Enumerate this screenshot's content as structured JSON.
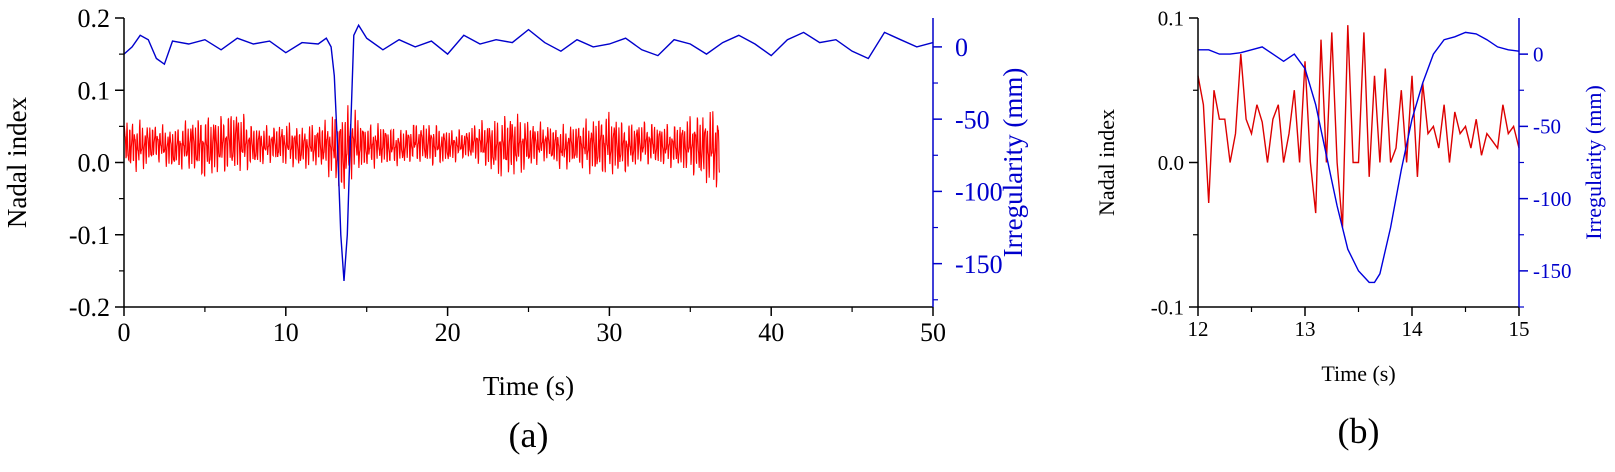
{
  "chart_data": [
    {
      "type": "line",
      "caption": "(a)",
      "xlabel": "Time (s)",
      "ylabel_left": "Nadal index",
      "ylabel_right": "Irregularity (mm)",
      "xlim": [
        0,
        50
      ],
      "ylim_left": [
        -0.2,
        0.2
      ],
      "ylim_right": [
        -180,
        20
      ],
      "x_ticks": [
        0,
        10,
        20,
        30,
        40,
        50
      ],
      "x_tick_labels": [
        "0",
        "10",
        "20",
        "30",
        "40",
        "50"
      ],
      "y_left_ticks": [
        -0.2,
        -0.1,
        0.0,
        0.1,
        0.2
      ],
      "y_left_tick_labels": [
        "-0.2",
        "-0.1",
        "0.0",
        "0.1",
        "0.2"
      ],
      "y_right_ticks": [
        0,
        -50,
        -100,
        -150
      ],
      "y_right_tick_labels": [
        "0",
        "-50",
        "-100",
        "-150"
      ],
      "grid": false,
      "legend": "none",
      "series": [
        {
          "axis": "left",
          "color": "#ff0000",
          "x": [
            0,
            1,
            2,
            3,
            4,
            5,
            6,
            7,
            8,
            9,
            10,
            11,
            12,
            13,
            13.5,
            14,
            15,
            16,
            17,
            18,
            19,
            20,
            21,
            22,
            23,
            24,
            25,
            26,
            27,
            28,
            29,
            30,
            31,
            32,
            33,
            34,
            35,
            36,
            36.8
          ],
          "y_mean": [
            0.025,
            0.022,
            0.028,
            0.018,
            0.025,
            0.02,
            0.025,
            0.03,
            0.022,
            0.025,
            0.026,
            0.02,
            0.025,
            0.02,
            0.01,
            0.03,
            0.022,
            0.025,
            0.02,
            0.028,
            0.025,
            0.022,
            0.025,
            0.028,
            0.02,
            0.025,
            0.024,
            0.028,
            0.02,
            0.025,
            0.022,
            0.026,
            0.02,
            0.028,
            0.025,
            0.022,
            0.025,
            0.02,
            0.02
          ],
          "amplitude": [
            0.035,
            0.035,
            0.025,
            0.03,
            0.035,
            0.045,
            0.04,
            0.045,
            0.03,
            0.025,
            0.03,
            0.03,
            0.03,
            0.045,
            0.065,
            0.05,
            0.03,
            0.03,
            0.025,
            0.028,
            0.03,
            0.025,
            0.02,
            0.03,
            0.04,
            0.045,
            0.035,
            0.025,
            0.03,
            0.03,
            0.04,
            0.045,
            0.035,
            0.03,
            0.03,
            0.03,
            0.04,
            0.05,
            0.06
          ]
        },
        {
          "axis": "right",
          "color": "#0000cc",
          "x": [
            0,
            0.5,
            1,
            1.5,
            2,
            2.5,
            3,
            4,
            5,
            6,
            7,
            8,
            9,
            10,
            11,
            12,
            12.5,
            12.8,
            13,
            13.2,
            13.4,
            13.6,
            13.8,
            14,
            14.2,
            14.5,
            15,
            16,
            17,
            18,
            19,
            20,
            21,
            22,
            23,
            24,
            25,
            26,
            27,
            28,
            29,
            30,
            31,
            32,
            33,
            34,
            35,
            36,
            37,
            38,
            39,
            40,
            41,
            42,
            43,
            44,
            45,
            46,
            47,
            48,
            49,
            50
          ],
          "y": [
            -5,
            0,
            8,
            5,
            -8,
            -12,
            4,
            2,
            5,
            -2,
            6,
            2,
            4,
            -4,
            3,
            2,
            6,
            0,
            -20,
            -70,
            -130,
            -162,
            -130,
            -60,
            8,
            15,
            6,
            -2,
            5,
            0,
            4,
            -5,
            8,
            2,
            5,
            3,
            12,
            3,
            -3,
            5,
            0,
            2,
            6,
            -2,
            -6,
            5,
            2,
            -5,
            3,
            8,
            2,
            -6,
            5,
            10,
            3,
            5,
            -3,
            -8,
            10,
            5,
            0,
            3
          ]
        }
      ]
    },
    {
      "type": "line",
      "caption": "(b)",
      "xlabel": "Time (s)",
      "ylabel_left": "Nadal index",
      "ylabel_right": "Irregularity (mm)",
      "xlim": [
        12,
        15
      ],
      "ylim_left": [
        -0.1,
        0.1
      ],
      "ylim_right": [
        -175,
        25
      ],
      "x_ticks": [
        12,
        13,
        14,
        15
      ],
      "x_tick_labels": [
        "12",
        "13",
        "14",
        "15"
      ],
      "y_left_ticks": [
        -0.1,
        0.0,
        0.1
      ],
      "y_left_tick_labels": [
        "-0.1",
        "0.0",
        "0.1"
      ],
      "y_right_ticks": [
        0,
        -50,
        -100,
        -150
      ],
      "y_right_tick_labels": [
        "0",
        "-50",
        "-100",
        "-150"
      ],
      "grid": false,
      "legend": "none",
      "series": [
        {
          "axis": "left",
          "color": "#dd0000",
          "x": [
            12,
            12.05,
            12.1,
            12.15,
            12.2,
            12.25,
            12.3,
            12.35,
            12.4,
            12.45,
            12.5,
            12.55,
            12.6,
            12.65,
            12.7,
            12.75,
            12.8,
            12.85,
            12.9,
            12.95,
            13,
            13.05,
            13.1,
            13.15,
            13.2,
            13.25,
            13.3,
            13.35,
            13.4,
            13.45,
            13.5,
            13.55,
            13.6,
            13.65,
            13.7,
            13.75,
            13.8,
            13.85,
            13.9,
            13.95,
            14,
            14.05,
            14.1,
            14.15,
            14.2,
            14.25,
            14.3,
            14.35,
            14.4,
            14.45,
            14.5,
            14.55,
            14.6,
            14.65,
            14.7,
            14.75,
            14.8,
            14.85,
            14.9,
            14.95,
            15
          ],
          "y": [
            0.06,
            0.04,
            -0.028,
            0.05,
            0.03,
            0.03,
            0.0,
            0.02,
            0.075,
            0.03,
            0.02,
            0.04,
            0.028,
            0.0,
            0.03,
            0.04,
            0.0,
            0.02,
            0.05,
            0.0,
            0.07,
            0.0,
            -0.035,
            0.085,
            0.0,
            0.09,
            0.0,
            -0.045,
            0.095,
            0.0,
            0.0,
            0.09,
            -0.01,
            0.06,
            0.0,
            0.065,
            0.0,
            0.01,
            0.05,
            0.0,
            0.06,
            -0.01,
            0.055,
            0.02,
            0.025,
            0.01,
            0.04,
            0.0,
            0.035,
            0.02,
            0.025,
            0.01,
            0.03,
            0.005,
            0.02,
            0.015,
            0.01,
            0.04,
            0.02,
            0.025,
            0.01
          ]
        },
        {
          "axis": "right",
          "color": "#0000dd",
          "x": [
            12,
            12.1,
            12.2,
            12.3,
            12.4,
            12.5,
            12.6,
            12.7,
            12.8,
            12.9,
            13,
            13.1,
            13.2,
            13.3,
            13.4,
            13.5,
            13.6,
            13.65,
            13.7,
            13.8,
            13.9,
            14,
            14.1,
            14.2,
            14.3,
            14.4,
            14.5,
            14.6,
            14.7,
            14.8,
            14.9,
            15
          ],
          "y": [
            3,
            3,
            0,
            0,
            1,
            3,
            5,
            0,
            -5,
            0,
            -10,
            -35,
            -70,
            -105,
            -135,
            -150,
            -158,
            -158,
            -152,
            -120,
            -80,
            -45,
            -20,
            0,
            10,
            12,
            15,
            14,
            10,
            5,
            3,
            2
          ]
        }
      ]
    }
  ]
}
